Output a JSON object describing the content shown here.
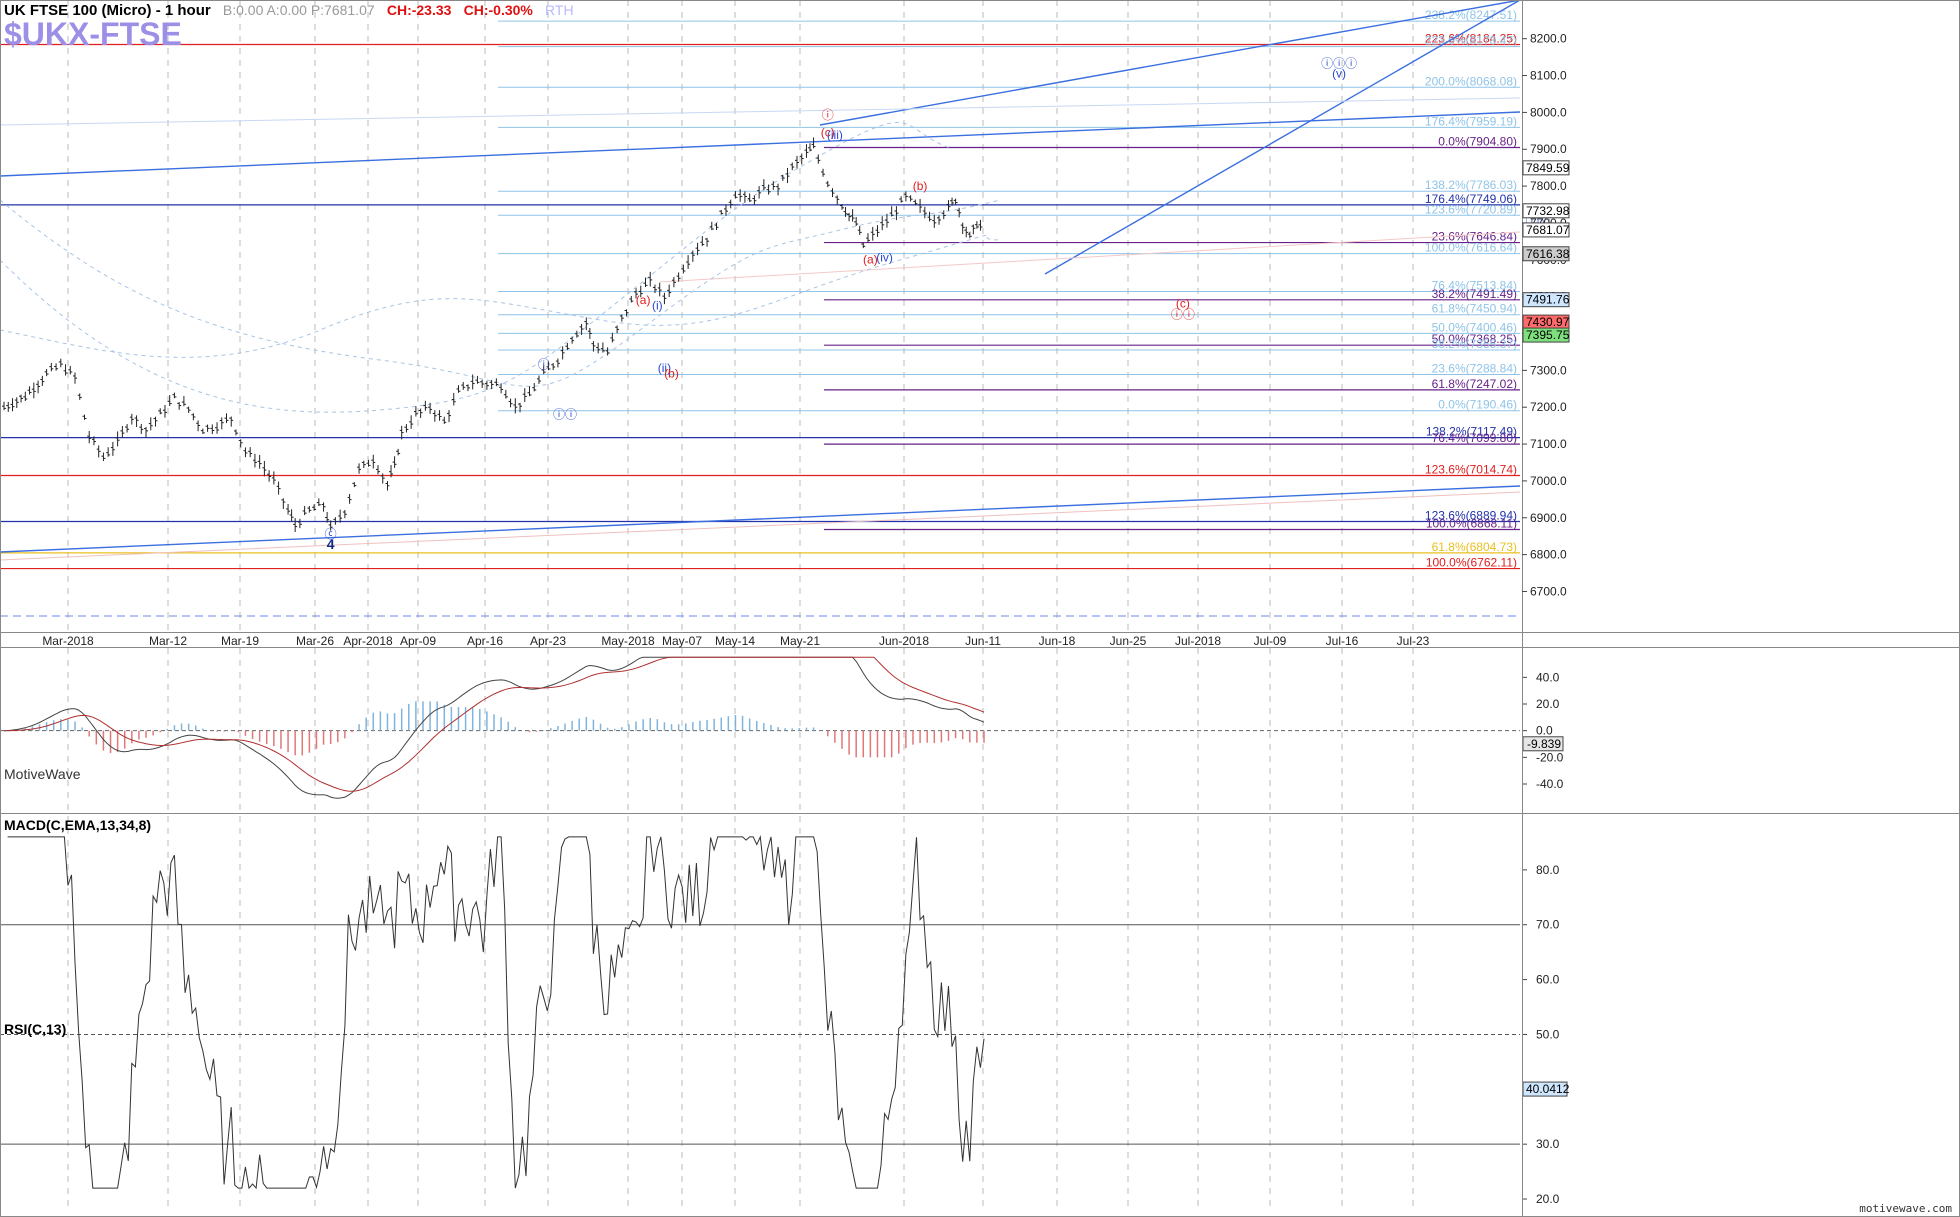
{
  "header": {
    "title": "UK FTSE 100 (Micro) - 1 hour",
    "quotes": "B:0.00  A:0.00  P:7681.07",
    "change1": "CH:-23.33",
    "change2": "CH:-0.30%",
    "session": "RTH",
    "symbol": "$UKX-FTSE",
    "brand": "MotiveWave",
    "watermark": "motivewave.com"
  },
  "colors": {
    "candle": "#222222",
    "fib_red": "#e02020",
    "fib_blue": "#2233aa",
    "fib_purple": "#662288",
    "fib_light": "#8fc4e8",
    "fib_gold": "#e8c020",
    "trend": "#3a6fe0",
    "macd_line": "#444444",
    "signal_line": "#b03030",
    "hist_up": "#7fb4dc",
    "hist_down": "#e07878"
  },
  "chart_data": [
    {
      "type": "candlestick",
      "title": "UK FTSE 100 (Micro) - 1 hour",
      "x_ticks": [
        "Mar-2018",
        "Mar-12",
        "Mar-19",
        "Mar-26",
        "Apr-2018",
        "Apr-09",
        "Apr-16",
        "Apr-23",
        "May-2018",
        "May-07",
        "May-14",
        "May-21",
        "Jun-2018",
        "Jun-11",
        "Jun-18",
        "Jun-25",
        "Jul-2018",
        "Jul-09",
        "Jul-16",
        "Jul-23"
      ],
      "y_ticks": [
        6700,
        6800,
        6900,
        7000,
        7100,
        7200,
        7300,
        7400,
        7500,
        7600,
        7700,
        7800,
        7900,
        8000,
        8100,
        8200
      ],
      "ylim": [
        6650,
        8260
      ],
      "price_path": [
        [
          0,
          7200
        ],
        [
          3,
          7230
        ],
        [
          6,
          7290
        ],
        [
          8,
          7315
        ],
        [
          10,
          7280
        ],
        [
          12,
          7120
        ],
        [
          14,
          7065
        ],
        [
          16,
          7105
        ],
        [
          18,
          7175
        ],
        [
          20,
          7140
        ],
        [
          22,
          7180
        ],
        [
          24,
          7225
        ],
        [
          26,
          7195
        ],
        [
          28,
          7140
        ],
        [
          30,
          7150
        ],
        [
          32,
          7170
        ],
        [
          34,
          7080
        ],
        [
          36,
          7050
        ],
        [
          38,
          7000
        ],
        [
          40,
          6920
        ],
        [
          41,
          6880
        ],
        [
          43,
          6920
        ],
        [
          45,
          6935
        ],
        [
          46,
          6870
        ],
        [
          48,
          6920
        ],
        [
          50,
          7030
        ],
        [
          52,
          7060
        ],
        [
          54,
          6990
        ],
        [
          55,
          7040
        ],
        [
          56,
          7130
        ],
        [
          58,
          7180
        ],
        [
          60,
          7200
        ],
        [
          62,
          7160
        ],
        [
          64,
          7240
        ],
        [
          66,
          7270
        ],
        [
          68,
          7265
        ],
        [
          70,
          7260
        ],
        [
          72,
          7200
        ],
        [
          74,
          7235
        ],
        [
          76,
          7290
        ],
        [
          78,
          7330
        ],
        [
          80,
          7390
        ],
        [
          82,
          7430
        ],
        [
          83,
          7370
        ],
        [
          85,
          7350
        ],
        [
          87,
          7440
        ],
        [
          89,
          7510
        ],
        [
          91,
          7540
        ],
        [
          93,
          7500
        ],
        [
          95,
          7560
        ],
        [
          97,
          7620
        ],
        [
          99,
          7660
        ],
        [
          101,
          7720
        ],
        [
          103,
          7780
        ],
        [
          105,
          7760
        ],
        [
          107,
          7790
        ],
        [
          109,
          7800
        ],
        [
          111,
          7850
        ],
        [
          113,
          7890
        ],
        [
          114,
          7905
        ],
        [
          116,
          7810
        ],
        [
          118,
          7750
        ],
        [
          119,
          7720
        ],
        [
          120,
          7700
        ],
        [
          121,
          7640
        ],
        [
          123,
          7680
        ],
        [
          125,
          7720
        ],
        [
          127,
          7770
        ],
        [
          129,
          7740
        ],
        [
          131,
          7710
        ],
        [
          133,
          7740
        ],
        [
          134,
          7765
        ],
        [
          135,
          7700
        ],
        [
          136,
          7660
        ],
        [
          137,
          7700
        ],
        [
          138,
          7681
        ]
      ],
      "fib_levels": [
        {
          "label": "238.2%(8247.51)",
          "price": 8247.51,
          "color": "light"
        },
        {
          "label": "223.6%(8184.25)",
          "price": 8184.25,
          "color": "red"
        },
        {
          "label": "223.6%(8178.47)",
          "price": 8178.47,
          "color": "light"
        },
        {
          "label": "200.0%(8068.08)",
          "price": 8068.08,
          "color": "light"
        },
        {
          "label": "176.4%(7959.19)",
          "price": 7959.19,
          "color": "light"
        },
        {
          "label": "0.0%(7904.80)",
          "price": 7904.8,
          "color": "purple"
        },
        {
          "label": "138.2%(7786.03)",
          "price": 7786.03,
          "color": "light"
        },
        {
          "label": "176.4%(7749.06)",
          "price": 7749.06,
          "color": "blue"
        },
        {
          "label": "123.6%(7720.89)",
          "price": 7720.89,
          "color": "light"
        },
        {
          "label": "23.6%(7646.84)",
          "price": 7646.84,
          "color": "purple"
        },
        {
          "label": "100.0%(7616.64)",
          "price": 7616.64,
          "color": "light"
        },
        {
          "label": "76.4%(7513.84)",
          "price": 7513.84,
          "color": "light"
        },
        {
          "label": "38.2%(7491.49)",
          "price": 7491.49,
          "color": "purple"
        },
        {
          "label": "61.8%(7450.94)",
          "price": 7450.94,
          "color": "light"
        },
        {
          "label": "50.0%(7400.46)",
          "price": 7400.46,
          "color": "light"
        },
        {
          "label": "50.0%(7368.25)",
          "price": 7368.25,
          "color": "purple"
        },
        {
          "label": "38.2%(7355.37)",
          "price": 7355.37,
          "color": "light"
        },
        {
          "label": "23.6%(7288.84)",
          "price": 7288.84,
          "color": "light"
        },
        {
          "label": "61.8%(7247.02)",
          "price": 7247.02,
          "color": "purple"
        },
        {
          "label": "0.0%(7190.46)",
          "price": 7190.46,
          "color": "light"
        },
        {
          "label": "138.2%(7117.49)",
          "price": 7117.49,
          "color": "blue"
        },
        {
          "label": "76.4%(7099.80)",
          "price": 7099.8,
          "color": "purple"
        },
        {
          "label": "123.6%(7014.74)",
          "price": 7014.74,
          "color": "red"
        },
        {
          "label": "123.6%(6889.94)",
          "price": 6889.94,
          "color": "blue"
        },
        {
          "label": "100.0%(6868.11)",
          "price": 6868.11,
          "color": "purple"
        },
        {
          "label": "61.8%(6804.73)",
          "price": 6804.73,
          "color": "gold"
        },
        {
          "label": "100.0%(6762.11)",
          "price": 6762.11,
          "color": "red"
        }
      ],
      "price_badges": [
        {
          "label": "7849.59",
          "price": 7849.59,
          "color": "#ffffff"
        },
        {
          "label": "7732.98",
          "price": 7732.98,
          "color": "#ffffff"
        },
        {
          "label": "7681.07",
          "price": 7681.07,
          "color": "#ffffff"
        },
        {
          "label": "7616.38",
          "price": 7616.38,
          "color": "#cccccc"
        },
        {
          "label": "7491.76",
          "price": 7491.76,
          "color": "#cfe6ff"
        },
        {
          "label": "7430.97",
          "price": 7430.97,
          "color": "#ff6a6a"
        },
        {
          "label": "7395.75",
          "price": 7395.75,
          "color": "#7de07d"
        }
      ],
      "wave_labels": [
        {
          "text": "ⓘ",
          "x": 116,
          "price": 7982,
          "color": "red"
        },
        {
          "text": "(c)",
          "x": 116,
          "price": 7935,
          "color": "red"
        },
        {
          "text": "(iii)",
          "x": 117,
          "price": 7928,
          "color": "blue"
        },
        {
          "text": "(b)",
          "x": 129,
          "price": 7790,
          "color": "red"
        },
        {
          "text": "(a)",
          "x": 122,
          "price": 7590,
          "color": "red"
        },
        {
          "text": "(iv)",
          "x": 124,
          "price": 7595,
          "color": "blue"
        },
        {
          "text": "(a)",
          "x": 90,
          "price": 7480,
          "color": "red"
        },
        {
          "text": "(i)",
          "x": 92,
          "price": 7465,
          "color": "blue"
        },
        {
          "text": "(ii)",
          "x": 93,
          "price": 7295,
          "color": "blue"
        },
        {
          "text": "(b)",
          "x": 94,
          "price": 7280,
          "color": "red"
        },
        {
          "text": "ⓘ",
          "x": 76,
          "price": 7305,
          "color": "blue"
        },
        {
          "text": "ⓘⓘ",
          "x": 79,
          "price": 7170,
          "color": "blue"
        },
        {
          "text": "ⓒ",
          "x": 46,
          "price": 6845,
          "color": "blue"
        },
        {
          "text": "4",
          "x": 46,
          "price": 6815,
          "color": "navy"
        }
      ],
      "projection_labels": [
        {
          "text": "ⓘⓘⓘ",
          "x": 188,
          "price": 8122,
          "color": "blue"
        },
        {
          "text": "(v)",
          "x": 188,
          "price": 8095,
          "color": "blue"
        },
        {
          "text": "ⓘⓥ",
          "x": 216,
          "price": 7695,
          "color": "blue"
        },
        {
          "text": "(c)",
          "x": 166,
          "price": 7470,
          "color": "red"
        },
        {
          "text": "ⓘⓘ",
          "x": 166,
          "price": 7441,
          "color": "red"
        }
      ]
    },
    {
      "type": "line",
      "title": "MACD(C,EMA,13,34,8)",
      "y_ticks": [
        40,
        20,
        0,
        -20,
        -40
      ],
      "ylim": [
        -58,
        62
      ],
      "last_value": "-9.839"
    },
    {
      "type": "line",
      "title": "RSI(C,13)",
      "y_ticks": [
        80,
        70,
        60,
        50,
        40,
        30,
        20
      ],
      "ylim": [
        18,
        90
      ],
      "levels": [
        70,
        50,
        30
      ],
      "last_value": "40.0412"
    }
  ]
}
